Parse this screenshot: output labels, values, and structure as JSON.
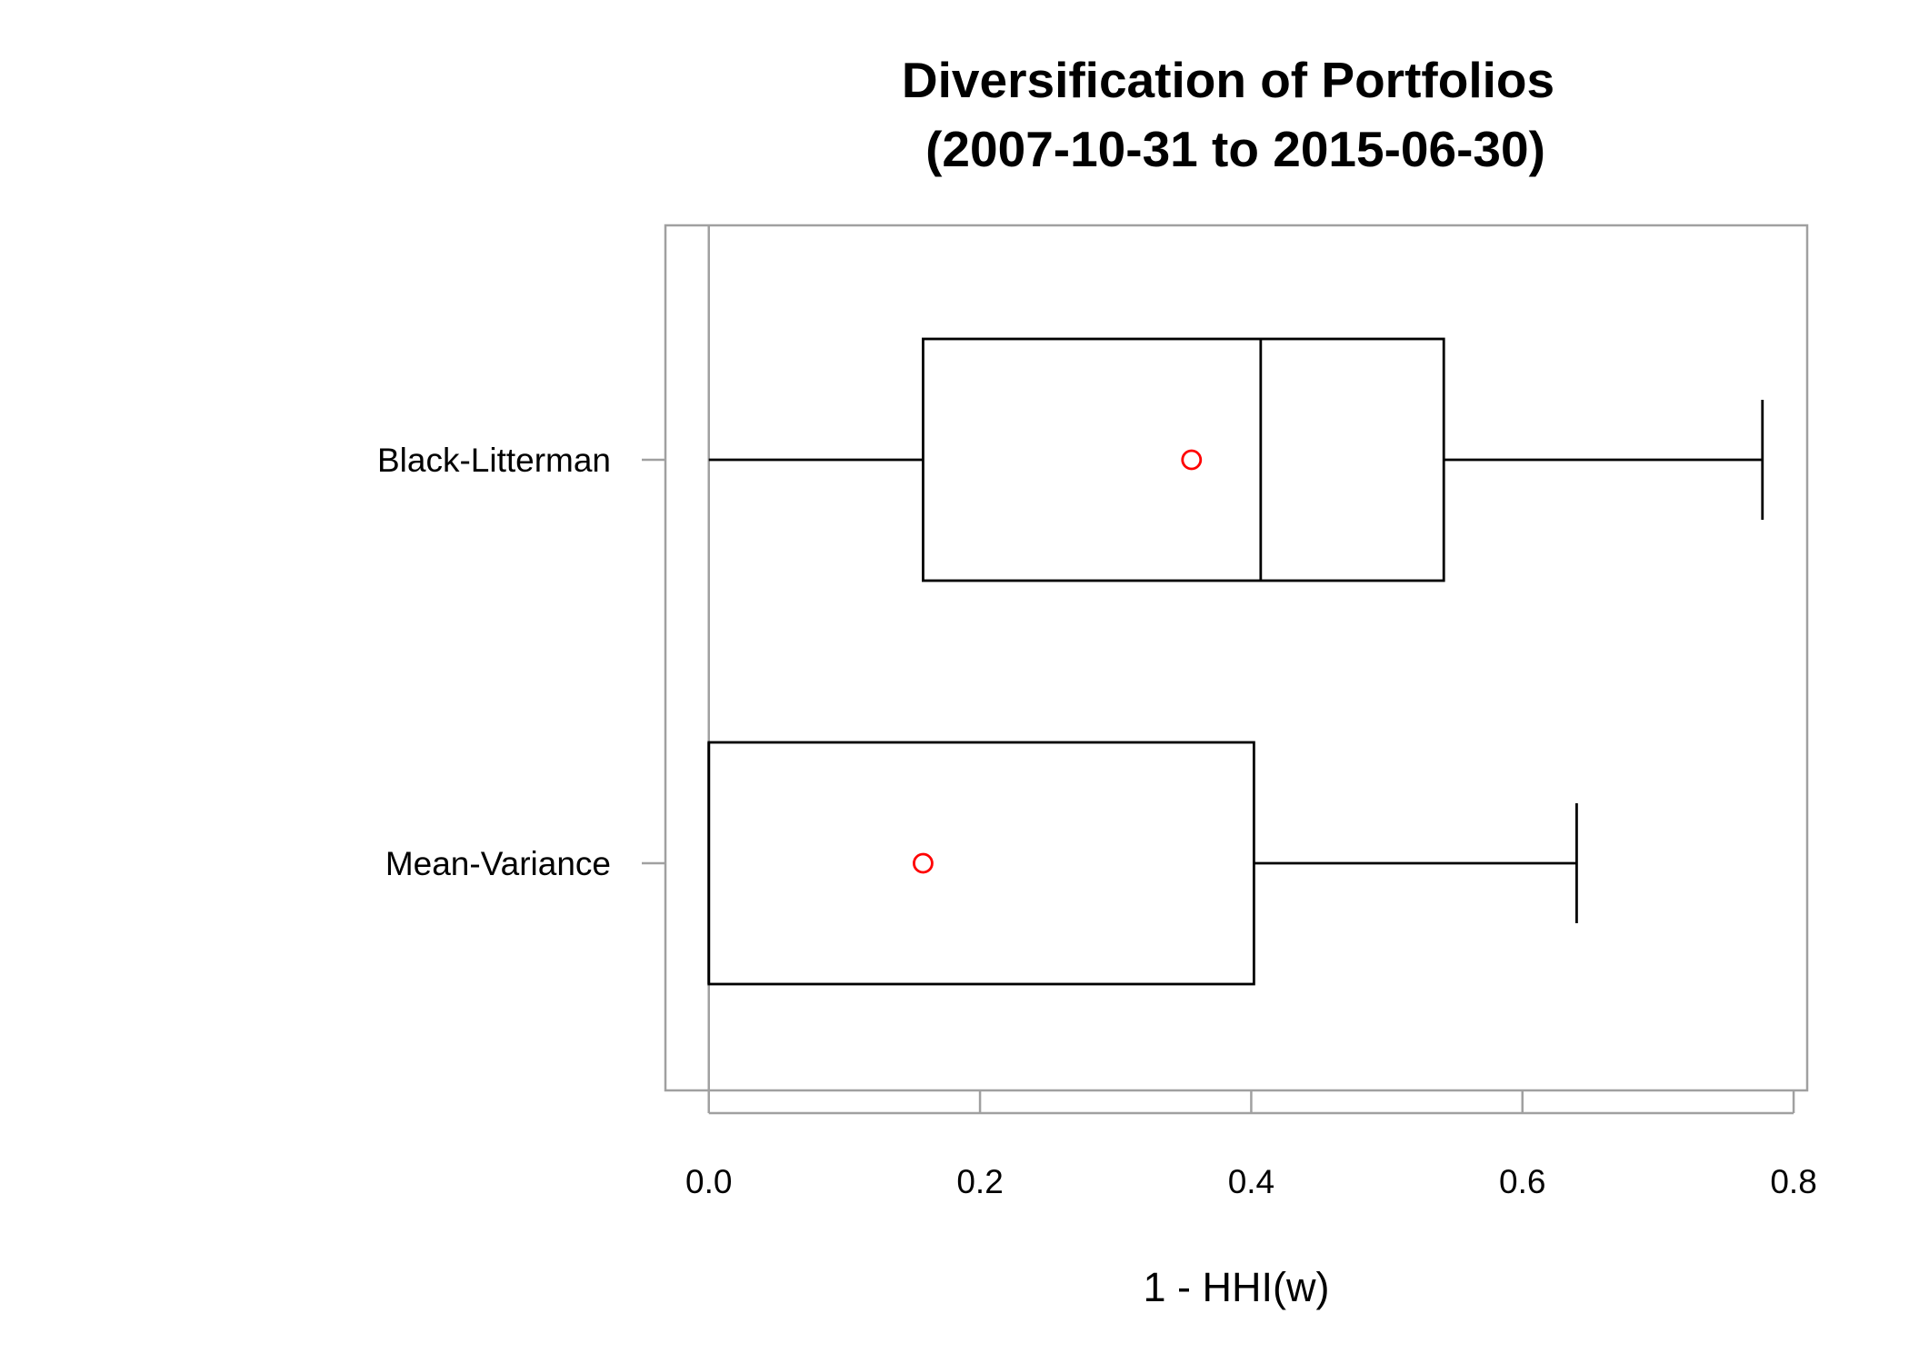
{
  "chart_data": {
    "type": "boxplot",
    "orientation": "horizontal",
    "title_line1": "Diversification of Portfolios",
    "title_line2": "(2007-10-31 to 2015-06-30)",
    "xlabel": "1 - HHI(w)",
    "ylabel": "",
    "xlim": [
      -0.032,
      0.81
    ],
    "xticks": [
      0.0,
      0.2,
      0.4,
      0.6,
      0.8
    ],
    "xtick_labels": [
      "0.0",
      "0.2",
      "0.4",
      "0.6",
      "0.8"
    ],
    "categories": [
      "Black-Litterman",
      "Mean-Variance"
    ],
    "boxes": [
      {
        "name": "Black-Litterman",
        "whisker_low": 0.0,
        "q1": 0.158,
        "median": 0.407,
        "q3": 0.542,
        "whisker_high": 0.777,
        "mean": 0.356
      },
      {
        "name": "Mean-Variance",
        "whisker_low": 0.0,
        "q1": 0.0,
        "median": 0.0,
        "q3": 0.402,
        "whisker_high": 0.64,
        "mean": 0.158
      }
    ],
    "mean_marker_color": "#ff0000",
    "axis_color": "#a0a0a0",
    "box_color": "#000000",
    "grid": false,
    "legend": "none"
  }
}
